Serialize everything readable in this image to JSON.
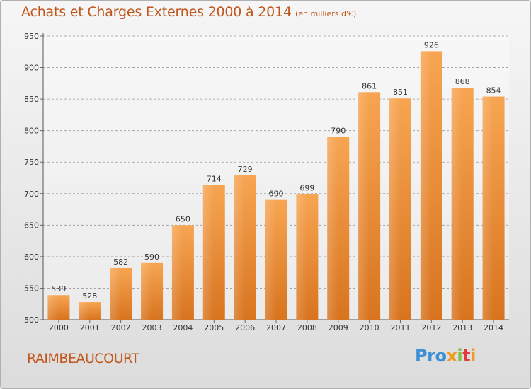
{
  "chart_data": {
    "type": "bar",
    "title": "Achats et Charges Externes 2000 à 2014",
    "subtitle": "(en milliers d'€)",
    "categories": [
      "2000",
      "2001",
      "2002",
      "2003",
      "2004",
      "2005",
      "2006",
      "2007",
      "2008",
      "2009",
      "2010",
      "2011",
      "2012",
      "2013",
      "2014"
    ],
    "values": [
      539,
      528,
      582,
      590,
      650,
      714,
      729,
      690,
      699,
      790,
      861,
      851,
      926,
      868,
      854
    ],
    "ylim": [
      500,
      950
    ],
    "yticks": [
      500,
      550,
      600,
      650,
      700,
      750,
      800,
      850,
      900,
      950
    ],
    "grid": true,
    "bar_color_top": "#f7a552",
    "bar_color_bottom": "#d8741f"
  },
  "footer": {
    "place": "RAIMBEAUCOURT",
    "logo_text": "Proxiti",
    "logo_letters": [
      "P",
      "r",
      "o",
      "x",
      "i",
      "t",
      "i"
    ],
    "logo_colors": [
      "#3c8fd6",
      "#3c8fd6",
      "#3c8fd6",
      "#f19a1e",
      "#7cc242",
      "#e53a3a",
      "#f19a1e"
    ]
  }
}
